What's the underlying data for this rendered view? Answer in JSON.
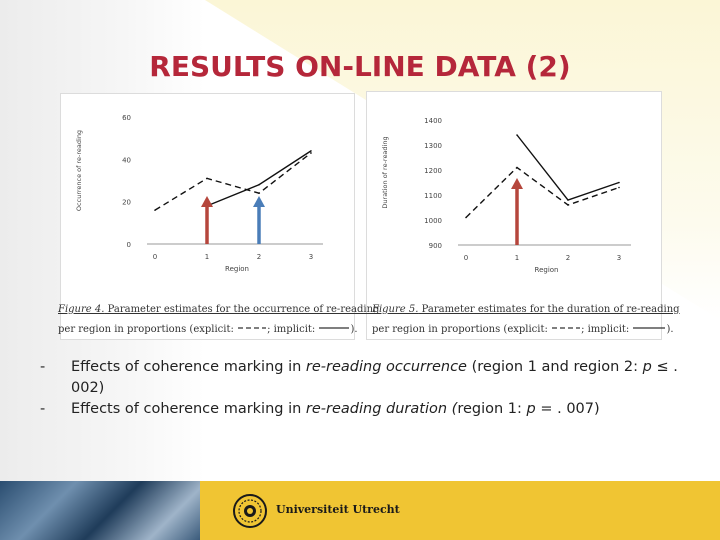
{
  "slide": {
    "title": "RESULTS ON-LINE DATA (2)"
  },
  "colors": {
    "title": "#b5273a",
    "arrow_red": "#b5463c",
    "arrow_blue": "#4a7db8",
    "footer": "#f0c533"
  },
  "captions": [
    {
      "figure": "Figure 4.",
      "text_line1": " Parameter estimates for the occurrence of re-reading",
      "text_line2a": "per region in proportions (explicit:",
      "text_line2b": "; implicit:",
      "text_line2c": ")."
    },
    {
      "figure": "Figure 5.",
      "text_line1": " Parameter estimates for the duration of re-reading",
      "text_line2a": "per region in proportions (explicit:",
      "text_line2b": "; implicit:",
      "text_line2c": ")."
    }
  ],
  "bullets": [
    {
      "dash": "-",
      "pre": "Effects of coherence marking in ",
      "em1": "re-reading occurrence",
      "mid": " (region 1 and region 2: ",
      "em2": "p",
      "post": " ≤ . 002)"
    },
    {
      "dash": "-",
      "pre": "Effects of coherence marking in ",
      "em1": "re-reading duration (",
      "mid": "region 1: ",
      "em2": "p",
      "post": " = . 007)"
    }
  ],
  "footer": {
    "university": "Universiteit Utrecht"
  },
  "chart_data": [
    {
      "type": "line",
      "x": [
        0,
        1,
        2,
        3
      ],
      "xticks": [
        "0",
        "1",
        "2",
        "3"
      ],
      "yticks": [
        "0",
        "20",
        "40",
        "60"
      ],
      "xlabel": "Region",
      "ylabel": "Occurrence of re-reading",
      "ylim": [
        0,
        60
      ],
      "series": [
        {
          "style": "dashed",
          "points": [
            [
              0,
              16
            ],
            [
              1,
              31
            ],
            [
              2,
              24
            ],
            [
              3,
              43
            ]
          ]
        },
        {
          "style": "solid",
          "points": [
            [
              1,
              18
            ],
            [
              2,
              28
            ],
            [
              3,
              44
            ]
          ]
        }
      ],
      "arrows": [
        {
          "x": 1,
          "color": "red"
        },
        {
          "x": 2,
          "color": "blue"
        }
      ]
    },
    {
      "type": "line",
      "x": [
        0,
        1,
        2,
        3
      ],
      "xticks": [
        "0",
        "1",
        "2",
        "3"
      ],
      "yticks": [
        "900",
        "1000",
        "1100",
        "1200",
        "1300",
        "1400"
      ],
      "xlabel": "Region",
      "ylabel": "Duration of re-reading",
      "ylim": [
        900,
        1400
      ],
      "series": [
        {
          "style": "dashed",
          "points": [
            [
              0,
              1010
            ],
            [
              1,
              1210
            ],
            [
              2,
              1060
            ],
            [
              3,
              1130
            ]
          ]
        },
        {
          "style": "solid",
          "points": [
            [
              1,
              1340
            ],
            [
              2,
              1080
            ],
            [
              3,
              1150
            ]
          ]
        }
      ],
      "arrows": [
        {
          "x": 1,
          "color": "red"
        }
      ]
    }
  ]
}
